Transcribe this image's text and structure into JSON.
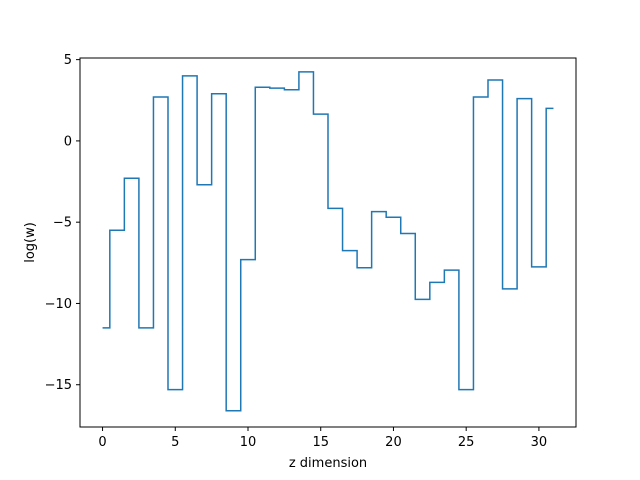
{
  "chart_data": {
    "type": "line",
    "drawstyle": "steps-mid",
    "xlabel": "z dimension",
    "ylabel": "log(w)",
    "xlim": [
      -1.55,
      32.55
    ],
    "ylim": [
      -17.6,
      5.1
    ],
    "xticks": [
      0,
      5,
      10,
      15,
      20,
      25,
      30
    ],
    "yticks": [
      5,
      0,
      -5,
      -10,
      -15
    ],
    "grid": false,
    "legend": "none",
    "series": [
      {
        "color": "#1f77b4",
        "x": [
          0,
          1,
          2,
          3,
          4,
          5,
          6,
          7,
          8,
          9,
          10,
          11,
          12,
          13,
          14,
          15,
          16,
          17,
          18,
          19,
          20,
          21,
          22,
          23,
          24,
          25,
          26,
          27,
          28,
          29,
          30,
          31
        ],
        "y": [
          -11.5,
          -5.5,
          -2.3,
          -11.5,
          2.7,
          -15.3,
          4.0,
          -2.7,
          2.9,
          -16.6,
          -7.3,
          3.3,
          3.25,
          3.15,
          4.25,
          1.65,
          -4.15,
          -6.75,
          -7.8,
          -4.35,
          -4.7,
          -5.7,
          -9.75,
          -8.7,
          -7.95,
          -15.3,
          2.7,
          3.75,
          -9.1,
          2.6,
          -7.75,
          2.0
        ]
      }
    ]
  }
}
